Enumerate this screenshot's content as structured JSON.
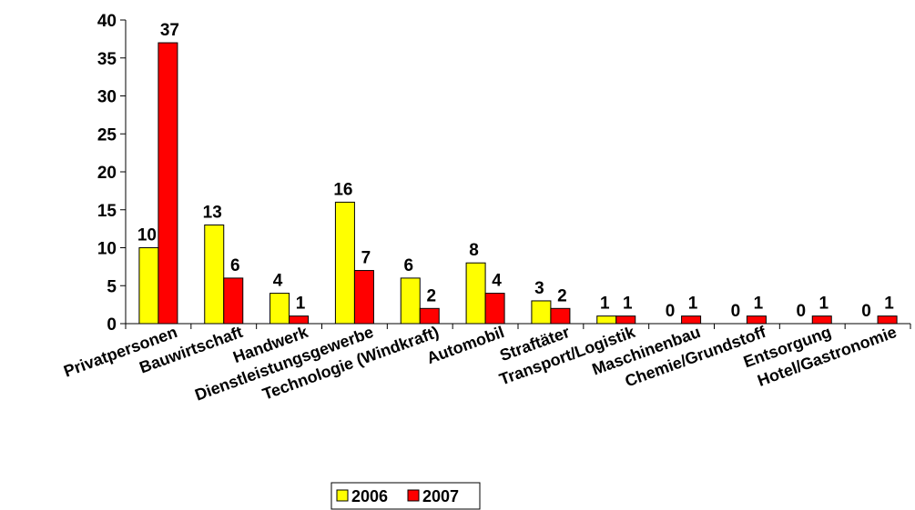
{
  "chart_data": {
    "type": "bar",
    "categories": [
      "Privatpersonen",
      "Bauwirtschaft",
      "Handwerk",
      "Dienstleistungsgewerbe",
      "Technologie (Windkraft)",
      "Automobil",
      "Straftäter",
      "Transport/Logistik",
      "Maschinenbau",
      "Chemie/Grundstoff",
      "Entsorgung",
      "Hotel/Gastronomie"
    ],
    "series": [
      {
        "name": "2006",
        "values": [
          10,
          13,
          4,
          16,
          6,
          8,
          3,
          1,
          0,
          0,
          0,
          0
        ],
        "color": "#ffff00"
      },
      {
        "name": "2007",
        "values": [
          37,
          6,
          1,
          7,
          2,
          4,
          2,
          1,
          1,
          1,
          1,
          1
        ],
        "color": "#ff0000"
      }
    ],
    "ylim": [
      0,
      40
    ],
    "yticks": [
      "0",
      "5",
      "10",
      "15",
      "20",
      "25",
      "30",
      "35",
      "40"
    ],
    "legend_position": "bottom",
    "grid": false
  }
}
